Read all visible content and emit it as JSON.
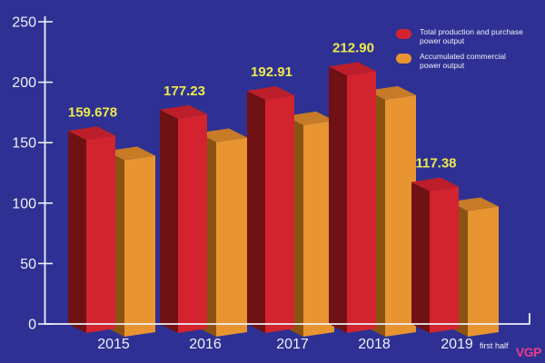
{
  "chart_data": {
    "type": "bar",
    "title": "",
    "categories": [
      "2015",
      "2016",
      "2017",
      "2018",
      "2019"
    ],
    "last_category_suffix": "first half",
    "series": [
      {
        "name": "Total production and purchase power output",
        "color": "#D2232E",
        "values": [
          159.678,
          177.23,
          192.91,
          212.9,
          117.38
        ],
        "labels": [
          "159.678",
          "177.23",
          "192.91",
          "212.90",
          "117.38"
        ]
      },
      {
        "name": "Accumulated commercial power output",
        "color": "#E89430",
        "values": [
          146,
          161,
          175,
          196,
          104
        ],
        "estimated": true
      }
    ],
    "ylim": [
      0,
      250
    ],
    "yticks": [
      0,
      50,
      100,
      150,
      200,
      250
    ],
    "grid": false,
    "legend_position": "top-right",
    "value_label_color": "#EDE94F",
    "axis_color": "#EFEFF7"
  },
  "legend": {
    "items": [
      {
        "label": "Total production and purchase power output",
        "color": "#D2232E"
      },
      {
        "label": "Accumulated commercial power output",
        "color": "#E89430"
      }
    ]
  },
  "watermark": {
    "text": "VGP",
    "color": "#EA3C86"
  },
  "colors": {
    "background": "#2E3193",
    "red_front": "#D2232E",
    "red_top": "#BC1E2A",
    "red_side": "#701114",
    "orange_front": "#E89430",
    "orange_top": "#C77B27",
    "orange_side": "#8A5312",
    "text": "#F0F0F5"
  }
}
